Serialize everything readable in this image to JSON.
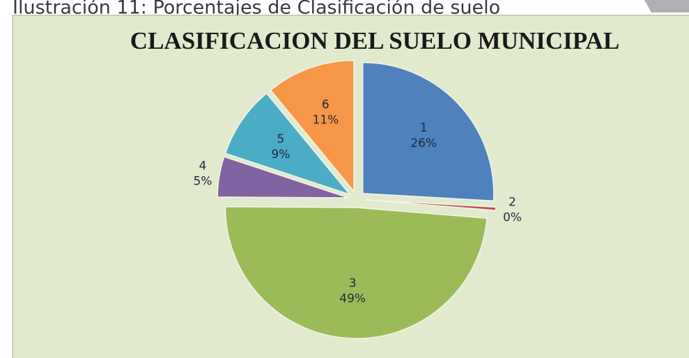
{
  "caption": "Ilustración 11: Porcentajes de Clasificación de suelo",
  "chart_data": {
    "type": "pie",
    "title": "CLASIFICACION DEL SUELO MUNICIPAL",
    "categories": [
      "1",
      "2",
      "3",
      "4",
      "5",
      "6"
    ],
    "values": [
      26,
      0.4,
      49,
      5,
      9,
      11
    ],
    "value_labels": [
      "26%",
      "0%",
      "49%",
      "5%",
      "9%",
      "11%"
    ],
    "colors": [
      "#4f81bd",
      "#c0504d",
      "#9bbb59",
      "#8064a2",
      "#4bacc6",
      "#f79646"
    ]
  }
}
